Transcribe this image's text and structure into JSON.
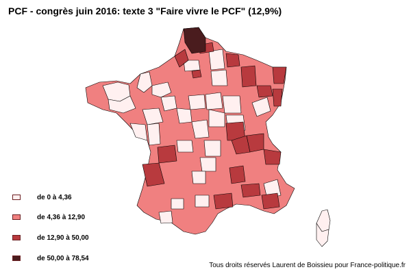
{
  "title": "PCF - congrès juin 2016: texte 3 \"Faire vivre le PCF\" (12,9%)",
  "legend": [
    {
      "label": "de 0 à 4,36",
      "color": "#fff0f0"
    },
    {
      "label": "de 4,36 à 12,90",
      "color": "#f08080"
    },
    {
      "label": "de 12,90 à 50,00",
      "color": "#b83a3e"
    },
    {
      "label": "de 50,00 à 78,54",
      "color": "#4a1c1e"
    }
  ],
  "credit": "Tous droits réservés Laurent de Boissieu pour France-politique.fr"
}
